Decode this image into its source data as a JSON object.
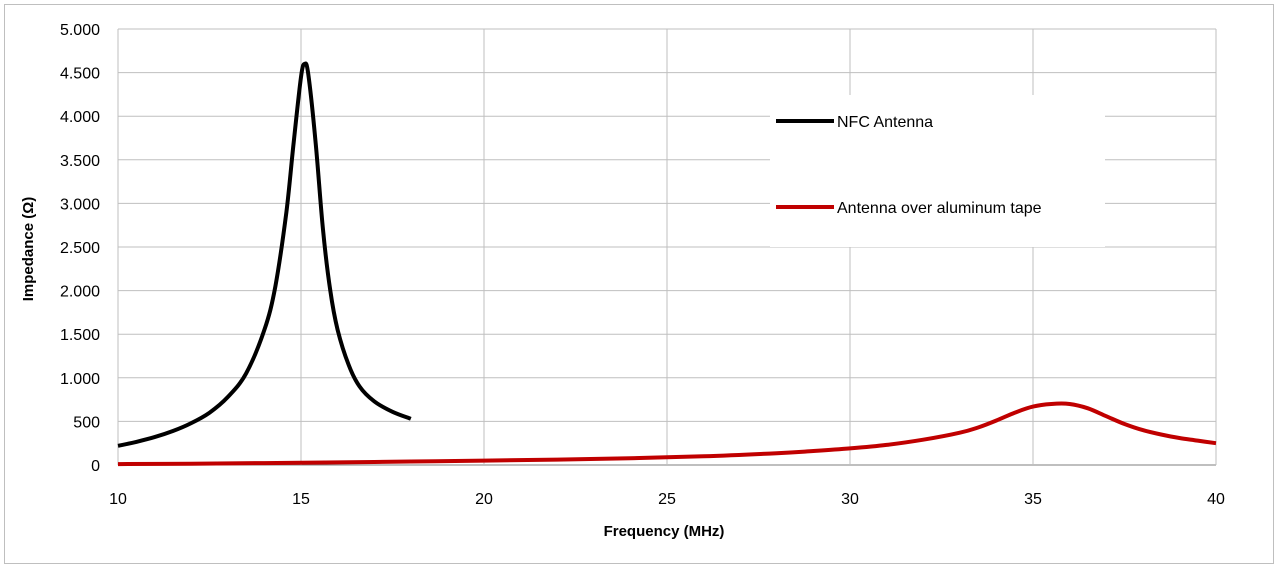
{
  "chart_data": {
    "type": "line",
    "title": "",
    "xlabel": "Frequency (MHz)",
    "ylabel": "Impedance (Ω)",
    "xlim": [
      10,
      40
    ],
    "ylim": [
      0,
      5000
    ],
    "x_ticks": [
      10,
      15,
      20,
      25,
      30,
      35,
      40
    ],
    "x_tick_labels": [
      "10",
      "15",
      "20",
      "25",
      "30",
      "35",
      "40"
    ],
    "y_ticks": [
      0,
      500,
      1000,
      1500,
      2000,
      2500,
      3000,
      3500,
      4000,
      4500,
      5000
    ],
    "y_tick_labels": [
      "0",
      "500",
      "1.000",
      "1.500",
      "2.000",
      "2.500",
      "3.000",
      "3.500",
      "4.000",
      "4.500",
      "5.000"
    ],
    "grid": true,
    "legend_position": "right",
    "series": [
      {
        "name": "NFC Antenna",
        "color": "#000000",
        "x": [
          10,
          10.5,
          11,
          11.5,
          12,
          12.5,
          13,
          13.5,
          14,
          14.3,
          14.6,
          14.8,
          15,
          15.1,
          15.2,
          15.4,
          15.6,
          15.8,
          16,
          16.3,
          16.6,
          17,
          17.5,
          18
        ],
        "y": [
          220,
          265,
          320,
          390,
          480,
          600,
          780,
          1050,
          1550,
          2050,
          2900,
          3700,
          4450,
          4600,
          4480,
          3700,
          2700,
          2000,
          1550,
          1150,
          900,
          730,
          610,
          530
        ]
      },
      {
        "name": "Antenna over aluminum tape",
        "color": "#c00000",
        "x": [
          10,
          12,
          14,
          16,
          18,
          20,
          22,
          24,
          26,
          28,
          29,
          30,
          31,
          32,
          33,
          33.5,
          34,
          34.5,
          35,
          35.5,
          36,
          36.5,
          37,
          37.5,
          38,
          38.5,
          39,
          39.5,
          40
        ],
        "y": [
          10,
          15,
          22,
          30,
          40,
          50,
          62,
          78,
          100,
          135,
          160,
          190,
          230,
          290,
          370,
          430,
          510,
          600,
          670,
          700,
          700,
          650,
          560,
          470,
          400,
          350,
          310,
          280,
          250
        ]
      }
    ]
  }
}
